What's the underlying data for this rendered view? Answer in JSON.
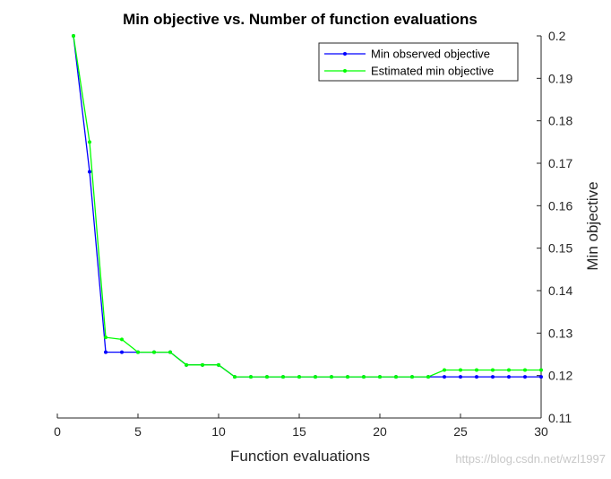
{
  "chart_data": {
    "type": "line",
    "title": "Min objective vs. Number of function evaluations",
    "xlabel": "Function evaluations",
    "ylabel": "Min objective",
    "xlim": [
      0,
      30
    ],
    "ylim": [
      0.11,
      0.2
    ],
    "xticks": [
      0,
      5,
      10,
      15,
      20,
      25,
      30
    ],
    "yticks": [
      0.11,
      0.12,
      0.13,
      0.14,
      0.15,
      0.16,
      0.17,
      0.18,
      0.19,
      0.2
    ],
    "y_axis_side": "right",
    "grid": false,
    "legend_position": "top-right",
    "x": [
      1,
      2,
      3,
      4,
      5,
      6,
      7,
      8,
      9,
      10,
      11,
      12,
      13,
      14,
      15,
      16,
      17,
      18,
      19,
      20,
      21,
      22,
      23,
      24,
      25,
      26,
      27,
      28,
      29,
      30
    ],
    "series": [
      {
        "name": "Min observed objective",
        "color": "#0000ff",
        "values": [
          0.2,
          0.168,
          0.1255,
          0.1255,
          0.1255,
          0.1255,
          0.1255,
          0.1225,
          0.1225,
          0.1225,
          0.1197,
          0.1197,
          0.1197,
          0.1197,
          0.1197,
          0.1197,
          0.1197,
          0.1197,
          0.1197,
          0.1197,
          0.1197,
          0.1197,
          0.1197,
          0.1197,
          0.1197,
          0.1197,
          0.1197,
          0.1197,
          0.1197,
          0.1197
        ]
      },
      {
        "name": "Estimated min objective",
        "color": "#00ff00",
        "values": [
          0.2,
          0.175,
          0.129,
          0.1285,
          0.1255,
          0.1255,
          0.1255,
          0.1225,
          0.1225,
          0.1225,
          0.1197,
          0.1197,
          0.1197,
          0.1197,
          0.1197,
          0.1197,
          0.1197,
          0.1197,
          0.1197,
          0.1197,
          0.1197,
          0.1197,
          0.1197,
          0.1213,
          0.1213,
          0.1213,
          0.1213,
          0.1213,
          0.1213,
          0.1213
        ]
      }
    ]
  },
  "watermark": "https://blog.csdn.net/wzl1997"
}
